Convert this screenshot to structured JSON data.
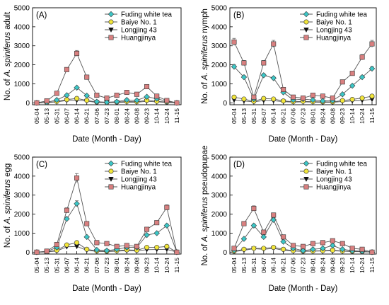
{
  "chart_data": [
    {
      "type": "line",
      "panel_label": "(A)",
      "title": "",
      "xlabel": "Date (Month - Day)",
      "ylabel_prefix": "No. of ",
      "ylabel_species": "A. spiniferus",
      "ylabel_suffix": " adult",
      "ylim": [
        -100,
        5000
      ],
      "yticks": [
        0,
        1000,
        2000,
        3000,
        4000,
        5000
      ],
      "x": [
        "05-04",
        "05-13",
        "05-31",
        "06-07",
        "06-14",
        "06-21",
        "07-06",
        "07-23",
        "08-01",
        "08-24",
        "09-08",
        "09-23",
        "10-14",
        "10-24",
        "11-15"
      ],
      "legend_position": "top-right",
      "series": [
        {
          "name": "Fuding white tea",
          "values": [
            0,
            30,
            150,
            400,
            800,
            380,
            60,
            30,
            60,
            150,
            130,
            320,
            220,
            80,
            0
          ]
        },
        {
          "name": "Baiye No. 1",
          "values": [
            0,
            15,
            70,
            170,
            230,
            130,
            40,
            15,
            40,
            70,
            60,
            130,
            80,
            40,
            0
          ]
        },
        {
          "name": "Longjing 43",
          "values": [
            0,
            10,
            50,
            120,
            130,
            90,
            20,
            10,
            20,
            40,
            35,
            80,
            50,
            20,
            0
          ]
        },
        {
          "name": "Huangjinya",
          "values": [
            0,
            100,
            500,
            1750,
            2600,
            1350,
            400,
            250,
            400,
            550,
            450,
            850,
            350,
            120,
            0
          ]
        }
      ]
    },
    {
      "type": "line",
      "panel_label": "(B)",
      "title": "",
      "xlabel": "Date (Month - Day)",
      "ylabel_prefix": "No. of ",
      "ylabel_species": "A. spiniferus",
      "ylabel_suffix": " nymph",
      "ylim": [
        -100,
        5000
      ],
      "yticks": [
        0,
        1000,
        2000,
        3000,
        4000,
        5000
      ],
      "x": [
        "05-04",
        "05-13",
        "05-31",
        "06-07",
        "06-14",
        "06-21",
        "07-06",
        "07-23",
        "08-01",
        "08-24",
        "09-08",
        "09-23",
        "10-14",
        "10-24",
        "11-15"
      ],
      "legend_position": "top-right",
      "series": [
        {
          "name": "Fuding white tea",
          "values": [
            1900,
            1350,
            200,
            1450,
            1300,
            550,
            150,
            200,
            150,
            100,
            120,
            450,
            900,
            1350,
            1800
          ]
        },
        {
          "name": "Baiye No. 1",
          "values": [
            300,
            200,
            80,
            230,
            200,
            100,
            60,
            80,
            60,
            50,
            50,
            120,
            180,
            250,
            350
          ]
        },
        {
          "name": "Longjing 43",
          "values": [
            150,
            100,
            50,
            120,
            110,
            60,
            40,
            50,
            40,
            30,
            30,
            70,
            100,
            130,
            180
          ]
        },
        {
          "name": "Huangjinya",
          "values": [
            3200,
            2100,
            300,
            2100,
            3100,
            700,
            300,
            250,
            400,
            350,
            250,
            1100,
            1550,
            2400,
            3100
          ]
        }
      ]
    },
    {
      "type": "line",
      "panel_label": "(C)",
      "title": "",
      "xlabel": "Date (Month - Day)",
      "ylabel_prefix": "No. of ",
      "ylabel_species": "A. spiniferus",
      "ylabel_suffix": " egg",
      "ylim": [
        -100,
        5000
      ],
      "yticks": [
        0,
        1000,
        2000,
        3000,
        4000,
        5000
      ],
      "x": [
        "05-04",
        "05-13",
        "05-31",
        "06-07",
        "06-14",
        "06-21",
        "07-06",
        "07-23",
        "08-01",
        "08-24",
        "09-08",
        "09-23",
        "10-14",
        "10-24",
        "11-15"
      ],
      "legend_position": "top-right",
      "series": [
        {
          "name": "Fuding white tea",
          "values": [
            0,
            30,
            250,
            1750,
            2550,
            800,
            120,
            80,
            150,
            250,
            250,
            900,
            1000,
            1400,
            0
          ]
        },
        {
          "name": "Baiye No. 1",
          "values": [
            0,
            15,
            100,
            380,
            500,
            150,
            60,
            40,
            80,
            120,
            100,
            250,
            250,
            300,
            0
          ]
        },
        {
          "name": "Longjing 43",
          "values": [
            0,
            10,
            60,
            280,
            300,
            100,
            40,
            30,
            50,
            80,
            70,
            130,
            140,
            150,
            0
          ]
        },
        {
          "name": "Huangjinya",
          "values": [
            0,
            50,
            400,
            2200,
            3900,
            1500,
            500,
            450,
            300,
            350,
            300,
            1200,
            1550,
            2350,
            0
          ]
        }
      ]
    },
    {
      "type": "line",
      "panel_label": "(D)",
      "title": "",
      "xlabel": "Date (Month - Day)",
      "ylabel_prefix": "No. of ",
      "ylabel_species": "A. spiniferus",
      "ylabel_suffix": " pseudopupae",
      "ylim": [
        -100,
        5000
      ],
      "yticks": [
        0,
        1000,
        2000,
        3000,
        4000,
        5000
      ],
      "x": [
        "05-04",
        "05-13",
        "05-31",
        "06-07",
        "06-14",
        "06-21",
        "07-06",
        "07-23",
        "08-01",
        "08-24",
        "09-08",
        "09-23",
        "10-14",
        "10-24",
        "11-15"
      ],
      "legend_position": "top-right",
      "series": [
        {
          "name": "Fuding white tea",
          "values": [
            100,
            700,
            1400,
            800,
            1700,
            550,
            200,
            80,
            150,
            200,
            350,
            150,
            80,
            50,
            0
          ]
        },
        {
          "name": "Baiye No. 1",
          "values": [
            50,
            150,
            200,
            200,
            250,
            150,
            80,
            50,
            60,
            80,
            100,
            60,
            40,
            30,
            0
          ]
        },
        {
          "name": "Longjing 43",
          "values": [
            30,
            100,
            180,
            150,
            200,
            100,
            60,
            40,
            50,
            60,
            70,
            50,
            30,
            20,
            0
          ]
        },
        {
          "name": "Huangjinya",
          "values": [
            200,
            1500,
            2300,
            1050,
            1950,
            800,
            350,
            300,
            450,
            500,
            600,
            450,
            200,
            150,
            0
          ]
        }
      ]
    }
  ],
  "colors": {
    "Fuding white tea": "#3cc7c7",
    "Baiye No. 1": "#f2e63a",
    "Longjing 43": "#111111",
    "Huangjinya": "#d98080",
    "line": "#555555"
  },
  "markers": {
    "Fuding white tea": "diamond",
    "Baiye No. 1": "circle",
    "Longjing 43": "triangle-down",
    "Huangjinya": "square"
  }
}
